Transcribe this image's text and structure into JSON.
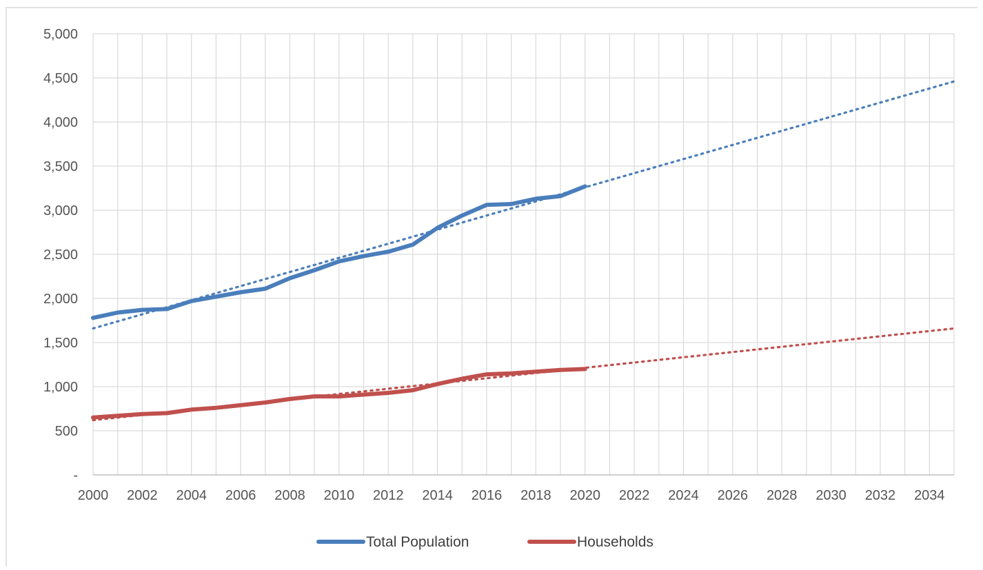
{
  "chart_data": {
    "type": "line",
    "title": "",
    "xlabel": "",
    "ylabel": "",
    "xlim": [
      2000,
      2035
    ],
    "ylim": [
      0,
      5000
    ],
    "x_ticks": [
      "2000",
      "2002",
      "2004",
      "2006",
      "2008",
      "2010",
      "2012",
      "2014",
      "2016",
      "2018",
      "2020",
      "2022",
      "2024",
      "2026",
      "2028",
      "2030",
      "2032",
      "2034"
    ],
    "y_ticks": [
      "-",
      "500",
      "1,000",
      "1,500",
      "2,000",
      "2,500",
      "3,000",
      "3,500",
      "4,000",
      "4,500",
      "5,000"
    ],
    "grid": true,
    "legend_position": "bottom",
    "series": [
      {
        "name": "Total Population",
        "color": "#4a7ebb",
        "x": [
          2000,
          2001,
          2002,
          2003,
          2004,
          2005,
          2006,
          2007,
          2008,
          2009,
          2010,
          2011,
          2012,
          2013,
          2014,
          2015,
          2016,
          2017,
          2018,
          2019,
          2020
        ],
        "values": [
          1780,
          1840,
          1870,
          1880,
          1970,
          2020,
          2070,
          2110,
          2230,
          2320,
          2420,
          2480,
          2530,
          2610,
          2800,
          2940,
          3060,
          3070,
          3130,
          3160,
          3270
        ],
        "trendline": {
          "style": "dotted",
          "x": [
            2000,
            2035
          ],
          "values": [
            1660,
            4460
          ]
        }
      },
      {
        "name": "Households",
        "color": "#c0504d",
        "x": [
          2000,
          2001,
          2002,
          2003,
          2004,
          2005,
          2006,
          2007,
          2008,
          2009,
          2010,
          2011,
          2012,
          2013,
          2014,
          2015,
          2016,
          2017,
          2018,
          2019,
          2020
        ],
        "values": [
          650,
          670,
          690,
          700,
          740,
          760,
          790,
          820,
          860,
          890,
          890,
          910,
          930,
          960,
          1030,
          1090,
          1140,
          1150,
          1170,
          1190,
          1200
        ],
        "trendline": {
          "style": "dotted",
          "x": [
            2000,
            2035
          ],
          "values": [
            620,
            1660
          ]
        }
      }
    ]
  }
}
